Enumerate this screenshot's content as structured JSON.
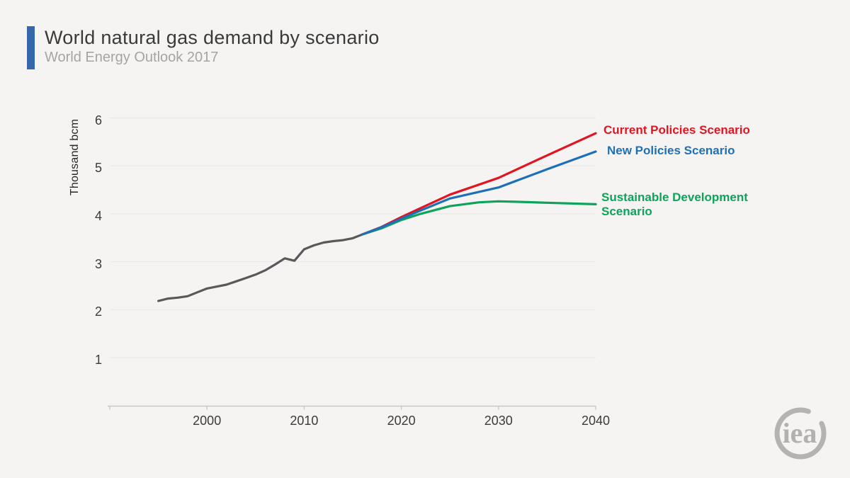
{
  "header": {
    "title": "World natural gas demand by scenario",
    "subtitle": "World Energy Outlook 2017",
    "accent_color": "#3468aa"
  },
  "chart_data": {
    "type": "line",
    "title": "World natural gas demand by scenario",
    "xlabel": "",
    "ylabel": "Thousand bcm",
    "xlim": [
      1990,
      2040
    ],
    "ylim": [
      0,
      6.3
    ],
    "x_ticks": [
      2000,
      2010,
      2020,
      2030,
      2040
    ],
    "y_ticks": [
      1,
      2,
      3,
      4,
      5,
      6
    ],
    "grid": "horizontal",
    "grid_color": "#e9e8e6",
    "axis_color": "#c9c8c6",
    "legend_position": "right-of-line-ends",
    "series": [
      {
        "name": "Historical",
        "color": "#59585a",
        "x": [
          1995,
          1996,
          1997,
          1998,
          1999,
          2000,
          2001,
          2002,
          2003,
          2004,
          2005,
          2006,
          2007,
          2008,
          2009,
          2010,
          2011,
          2012,
          2013,
          2014,
          2015,
          2016
        ],
        "values": [
          2.18,
          2.23,
          2.25,
          2.28,
          2.36,
          2.44,
          2.48,
          2.52,
          2.59,
          2.66,
          2.73,
          2.82,
          2.94,
          3.07,
          3.02,
          3.26,
          3.34,
          3.4,
          3.43,
          3.45,
          3.49,
          3.57
        ]
      },
      {
        "name": "Current Policies Scenario",
        "color": "#e11422",
        "x": [
          2016,
          2018,
          2020,
          2022,
          2025,
          2030,
          2035,
          2040
        ],
        "values": [
          3.57,
          3.73,
          3.93,
          4.12,
          4.4,
          4.75,
          5.22,
          5.68
        ]
      },
      {
        "name": "New Policies Scenario",
        "color": "#1d70b7",
        "x": [
          2016,
          2018,
          2020,
          2022,
          2025,
          2030,
          2035,
          2040
        ],
        "values": [
          3.57,
          3.72,
          3.9,
          4.07,
          4.32,
          4.55,
          4.93,
          5.3
        ]
      },
      {
        "name": "Sustainable Development Scenario",
        "color": "#0ea35a",
        "x": [
          2016,
          2018,
          2020,
          2022,
          2025,
          2028,
          2030,
          2032,
          2035,
          2040
        ],
        "values": [
          3.57,
          3.7,
          3.87,
          4.0,
          4.16,
          4.24,
          4.26,
          4.25,
          4.23,
          4.2
        ]
      }
    ]
  },
  "logo": {
    "text": "iea"
  }
}
